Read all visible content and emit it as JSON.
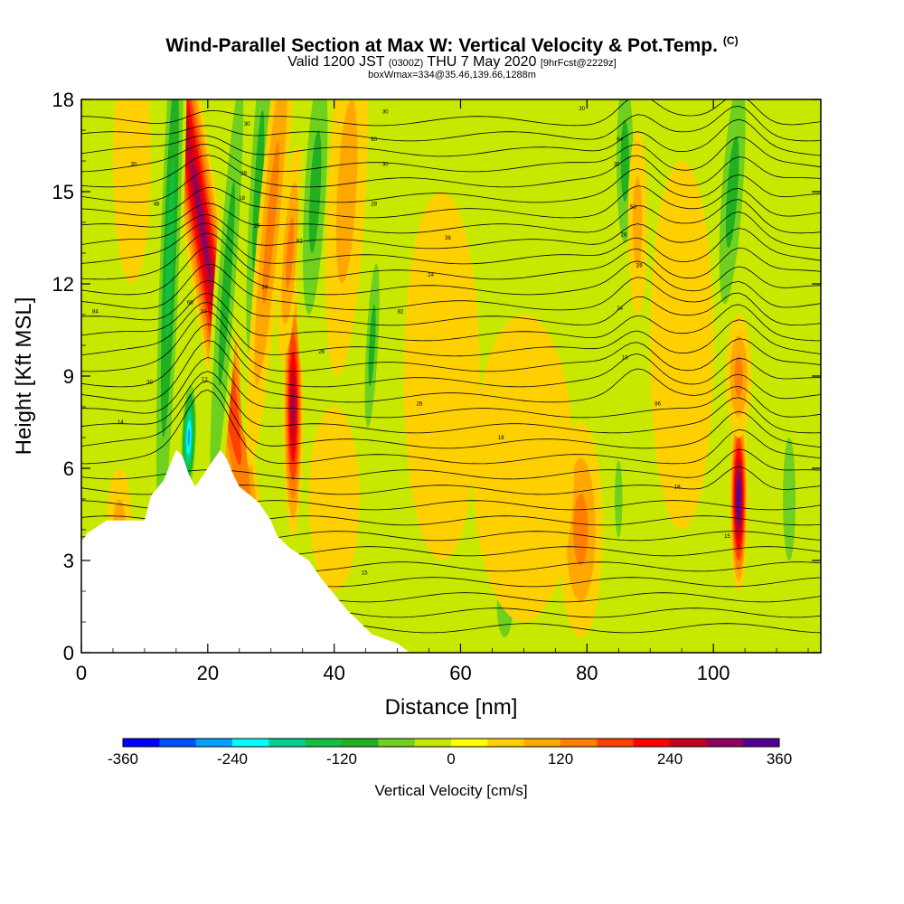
{
  "header": {
    "title": "Wind-Parallel Section at Max W: Vertical Velocity & Pot.Temp.",
    "copyright": "(C)",
    "valid_prefix": "Valid 1200 JST",
    "valid_utc": "(0300Z)",
    "valid_date": "THU 7 May 2020",
    "forecast": "[9hrFcst@2229z]",
    "box_info": "boxWmax=334@35.46,139.66,1288m"
  },
  "chart_data": {
    "type": "heatmap",
    "xlabel": "Distance [nm]",
    "ylabel": "Height [Kft MSL]",
    "xlim": [
      0,
      117
    ],
    "ylim": [
      0,
      18
    ],
    "x_ticks": [
      0,
      20,
      40,
      60,
      80,
      100
    ],
    "y_ticks": [
      0,
      3,
      6,
      9,
      12,
      15,
      18
    ],
    "colorbar": {
      "title": "Vertical Velocity [cm/s]",
      "range": [
        -360,
        360
      ],
      "tick_labels": [
        "-360",
        "-240",
        "-120",
        "0",
        "120",
        "240",
        "360"
      ],
      "colors": [
        "#0000ff",
        "#0050ff",
        "#00a0ff",
        "#00ffff",
        "#00d090",
        "#10c040",
        "#20b020",
        "#70d020",
        "#c8e800",
        "#ffff00",
        "#ffd000",
        "#ffa800",
        "#ff8000",
        "#ff4000",
        "#ff0000",
        "#c80020",
        "#900060",
        "#500090"
      ]
    },
    "terrain_top_kft": [
      [
        0,
        3.6
      ],
      [
        1,
        3.9
      ],
      [
        4,
        4.3
      ],
      [
        10,
        4.3
      ],
      [
        11,
        5.1
      ],
      [
        13,
        5.6
      ],
      [
        14,
        6.1
      ],
      [
        15,
        6.6
      ],
      [
        16,
        6.4
      ],
      [
        17,
        5.8
      ],
      [
        18,
        5.4
      ],
      [
        19,
        5.7
      ],
      [
        20,
        6.0
      ],
      [
        22,
        6.6
      ],
      [
        23,
        6.3
      ],
      [
        24,
        5.8
      ],
      [
        25,
        5.4
      ],
      [
        28,
        4.9
      ],
      [
        30,
        4.3
      ],
      [
        31,
        3.8
      ],
      [
        33,
        3.4
      ],
      [
        36,
        3.0
      ],
      [
        38,
        2.4
      ],
      [
        40,
        1.9
      ],
      [
        42,
        1.4
      ],
      [
        44,
        1.0
      ],
      [
        46,
        0.6
      ],
      [
        50,
        0.3
      ],
      [
        52,
        0
      ],
      [
        117,
        0
      ]
    ],
    "cells": [
      {
        "x": 19,
        "y": 14,
        "rx": 3,
        "ry": 14,
        "w": 290,
        "tilt": -0.9
      },
      {
        "x": 14,
        "y": 13,
        "rx": 2,
        "ry": 12,
        "w": -140,
        "tilt": 0.2
      },
      {
        "x": 23,
        "y": 12,
        "rx": 2,
        "ry": 10,
        "w": -130,
        "tilt": 0.4
      },
      {
        "x": 17,
        "y": 7,
        "rx": 1.3,
        "ry": 2,
        "w": -280,
        "tilt": 0.2
      },
      {
        "x": 28,
        "y": 15,
        "rx": 2,
        "ry": 8,
        "w": -130,
        "tilt": 0.3
      },
      {
        "x": 30,
        "y": 14,
        "rx": 2,
        "ry": 8,
        "w": 110,
        "tilt": 0.5
      },
      {
        "x": 33.5,
        "y": 8,
        "rx": 1.6,
        "ry": 4.2,
        "w": 270
      },
      {
        "x": 33,
        "y": 13,
        "rx": 1.6,
        "ry": 3.5,
        "w": 120,
        "tilt": 0.4
      },
      {
        "x": 37,
        "y": 15,
        "rx": 2.5,
        "ry": 6,
        "w": -100,
        "tilt": 0.3
      },
      {
        "x": 42,
        "y": 15,
        "rx": 3,
        "ry": 6,
        "w": 70,
        "tilt": 0.3
      },
      {
        "x": 46,
        "y": 10,
        "rx": 1.4,
        "ry": 4,
        "w": -120,
        "tilt": 0.3
      },
      {
        "x": 86,
        "y": 16,
        "rx": 2,
        "ry": 4,
        "w": -120
      },
      {
        "x": 88,
        "y": 14,
        "rx": 1.5,
        "ry": 3,
        "w": 70
      },
      {
        "x": 103,
        "y": 15,
        "rx": 2.5,
        "ry": 5.5,
        "w": -130,
        "tilt": 0.4
      },
      {
        "x": 104,
        "y": 5,
        "rx": 1.4,
        "ry": 3,
        "w": 340
      },
      {
        "x": 104,
        "y": 9,
        "rx": 2,
        "ry": 2,
        "w": 130
      },
      {
        "x": 79,
        "y": 4,
        "rx": 3.5,
        "ry": 3.5,
        "w": 120
      },
      {
        "x": 85,
        "y": 5,
        "rx": 1.2,
        "ry": 2.5,
        "w": -60
      },
      {
        "x": 112,
        "y": 5,
        "rx": 2,
        "ry": 4,
        "w": -60
      },
      {
        "x": 67,
        "y": 1.5,
        "rx": 2.5,
        "ry": 2,
        "w": -60
      },
      {
        "x": 57,
        "y": 9,
        "rx": 6,
        "ry": 6,
        "w": 40
      },
      {
        "x": 70,
        "y": 6,
        "rx": 8,
        "ry": 5,
        "w": 45
      },
      {
        "x": 95,
        "y": 10,
        "rx": 5,
        "ry": 6,
        "w": 40
      },
      {
        "x": 8,
        "y": 16,
        "rx": 3,
        "ry": 4,
        "w": 50
      },
      {
        "x": 6,
        "y": 4,
        "rx": 2,
        "ry": 2,
        "w": 60
      },
      {
        "x": 40,
        "y": 5,
        "rx": 4,
        "ry": 3,
        "w": 50
      }
    ],
    "contour_labels": [
      {
        "x": 8.3,
        "y": 15.9,
        "text": "30"
      },
      {
        "x": 11.9,
        "y": 14.6,
        "text": "48"
      },
      {
        "x": 2.2,
        "y": 11.1,
        "text": "84"
      },
      {
        "x": 10.8,
        "y": 8.8,
        "text": "30"
      },
      {
        "x": 6.2,
        "y": 7.5,
        "text": "14"
      },
      {
        "x": 17.2,
        "y": 11.4,
        "text": "66"
      },
      {
        "x": 19.3,
        "y": 11.1,
        "text": "34"
      },
      {
        "x": 19.5,
        "y": 8.9,
        "text": "12"
      },
      {
        "x": 26.2,
        "y": 17.2,
        "text": "30"
      },
      {
        "x": 25.7,
        "y": 15.6,
        "text": "28"
      },
      {
        "x": 25.4,
        "y": 14.8,
        "text": "18"
      },
      {
        "x": 27.8,
        "y": 13.9,
        "text": "26"
      },
      {
        "x": 29,
        "y": 11.9,
        "text": "34"
      },
      {
        "x": 34.5,
        "y": 13.4,
        "text": "82"
      },
      {
        "x": 38,
        "y": 9.8,
        "text": "26"
      },
      {
        "x": 48.1,
        "y": 17.6,
        "text": "30"
      },
      {
        "x": 46.3,
        "y": 16.7,
        "text": "60"
      },
      {
        "x": 48.1,
        "y": 15.9,
        "text": "30"
      },
      {
        "x": 46.3,
        "y": 14.6,
        "text": "28"
      },
      {
        "x": 58,
        "y": 13.5,
        "text": "36"
      },
      {
        "x": 55.3,
        "y": 12.3,
        "text": "24"
      },
      {
        "x": 50.5,
        "y": 11.1,
        "text": "82"
      },
      {
        "x": 53.5,
        "y": 8.1,
        "text": "26"
      },
      {
        "x": 66.4,
        "y": 7.0,
        "text": "18"
      },
      {
        "x": 79.2,
        "y": 17.7,
        "text": "30"
      },
      {
        "x": 85.2,
        "y": 16.7,
        "text": "64"
      },
      {
        "x": 84.7,
        "y": 15.9,
        "text": "30"
      },
      {
        "x": 87.3,
        "y": 14.5,
        "text": "50"
      },
      {
        "x": 85.8,
        "y": 13.6,
        "text": "28"
      },
      {
        "x": 88.3,
        "y": 12.6,
        "text": "26"
      },
      {
        "x": 85.2,
        "y": 11.2,
        "text": "24"
      },
      {
        "x": 86,
        "y": 9.6,
        "text": "10"
      },
      {
        "x": 91.2,
        "y": 8.1,
        "text": "86"
      },
      {
        "x": 94.3,
        "y": 5.4,
        "text": "18"
      },
      {
        "x": 102.2,
        "y": 3.8,
        "text": "15"
      },
      {
        "x": 44.8,
        "y": 2.6,
        "text": "15"
      }
    ]
  }
}
